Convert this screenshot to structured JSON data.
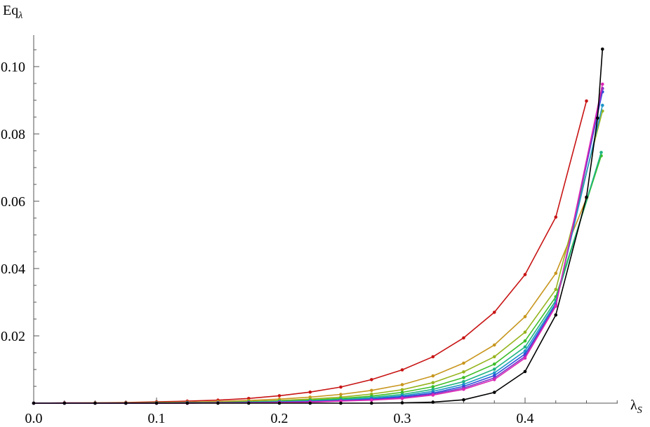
{
  "chart_data": {
    "type": "line",
    "title": "",
    "xlabel": "λ",
    "xlabel_sub": "S",
    "ylabel": "Eq",
    "ylabel_sub": "λ",
    "xlim": [
      0,
      0.475
    ],
    "ylim": [
      0,
      0.108
    ],
    "grid": false,
    "markers": true,
    "x_ticks": [
      {
        "value": 0.0,
        "label": "0.0"
      },
      {
        "value": 0.1,
        "label": "0.1"
      },
      {
        "value": 0.2,
        "label": "0.2"
      },
      {
        "value": 0.3,
        "label": "0.3"
      },
      {
        "value": 0.4,
        "label": "0.4"
      }
    ],
    "y_ticks": [
      {
        "value": 0.02,
        "label": "0.02"
      },
      {
        "value": 0.04,
        "label": "0.04"
      },
      {
        "value": 0.06,
        "label": "0.06"
      },
      {
        "value": 0.08,
        "label": "0.08"
      },
      {
        "value": 0.1,
        "label": "0.10"
      }
    ],
    "x": [
      0.0,
      0.025,
      0.05,
      0.075,
      0.1,
      0.125,
      0.15,
      0.175,
      0.2,
      0.225,
      0.25,
      0.275,
      0.3,
      0.325,
      0.35,
      0.375,
      0.4,
      0.425
    ],
    "series": [
      {
        "color": "#c81414",
        "values": [
          0,
          0.0001,
          0.0001,
          0.0002,
          0.0004,
          0.0006,
          0.0009,
          0.0014,
          0.0022,
          0.0033,
          0.0048,
          0.007,
          0.0099,
          0.0138,
          0.0194,
          0.027,
          0.0382,
          0.0553
        ],
        "end": [
          0.45,
          0.0898
        ]
      },
      {
        "color": "#c8961e",
        "values": [
          0,
          0.0,
          0.0001,
          0.0001,
          0.0002,
          0.0003,
          0.0005,
          0.0008,
          0.0012,
          0.0018,
          0.0026,
          0.0038,
          0.0055,
          0.0081,
          0.0119,
          0.0173,
          0.0257,
          0.0386
        ],
        "end": [
          0.45,
          0.0608
        ]
      },
      {
        "color": "#96b41e",
        "values": [
          0,
          0.0,
          0.0,
          0.0001,
          0.0001,
          0.0002,
          0.0003,
          0.0005,
          0.0008,
          0.0012,
          0.0018,
          0.0027,
          0.004,
          0.0061,
          0.0093,
          0.0138,
          0.0211,
          0.0338
        ],
        "end": [
          0.463,
          0.0868
        ]
      },
      {
        "color": "#3cbe28",
        "values": [
          0,
          0.0,
          0.0,
          0.0,
          0.0001,
          0.0001,
          0.0002,
          0.0004,
          0.0006,
          0.0009,
          0.0014,
          0.0021,
          0.0032,
          0.0049,
          0.0076,
          0.0116,
          0.0185,
          0.0316
        ],
        "end": [
          0.462,
          0.0735
        ]
      },
      {
        "color": "#1eb482",
        "values": [
          0,
          0.0,
          0.0,
          0.0,
          0.0001,
          0.0001,
          0.0002,
          0.0003,
          0.0005,
          0.0007,
          0.0011,
          0.0017,
          0.0026,
          0.0041,
          0.0064,
          0.0101,
          0.0167,
          0.0305
        ],
        "end": [
          0.462,
          0.0745
        ]
      },
      {
        "color": "#1e96c8",
        "values": [
          0,
          0.0,
          0.0,
          0.0,
          0.0,
          0.0001,
          0.0001,
          0.0002,
          0.0004,
          0.0006,
          0.0009,
          0.0014,
          0.0022,
          0.0035,
          0.0056,
          0.009,
          0.0155,
          0.0298
        ],
        "end": [
          0.463,
          0.0885
        ]
      },
      {
        "color": "#2850dc",
        "values": [
          0,
          0.0,
          0.0,
          0.0,
          0.0,
          0.0001,
          0.0001,
          0.0002,
          0.0003,
          0.0005,
          0.0008,
          0.0012,
          0.0019,
          0.003,
          0.005,
          0.0082,
          0.0146,
          0.0293
        ],
        "end": [
          0.463,
          0.0925
        ]
      },
      {
        "color": "#8232c8",
        "values": [
          0,
          0.0,
          0.0,
          0.0,
          0.0,
          0.0,
          0.0001,
          0.0001,
          0.0002,
          0.0004,
          0.0007,
          0.001,
          0.0016,
          0.0027,
          0.0045,
          0.0075,
          0.0139,
          0.029
        ],
        "end": [
          0.463,
          0.0935
        ]
      },
      {
        "color": "#dc28b4",
        "values": [
          0,
          0.0,
          0.0,
          0.0,
          0.0,
          0.0,
          0.0001,
          0.0001,
          0.0002,
          0.0003,
          0.0006,
          0.0009,
          0.0014,
          0.0024,
          0.0041,
          0.007,
          0.0134,
          0.0288
        ],
        "end": [
          0.463,
          0.0948
        ]
      },
      {
        "color": "#000000",
        "values": [
          0,
          0.0,
          0.0,
          0.0,
          0.0,
          0.0,
          0.0,
          0.0,
          0.0,
          0.0,
          0.0,
          0.0,
          0.0001,
          0.0003,
          0.001,
          0.0032,
          0.0094,
          0.0262
        ],
        "end": [
          0.463,
          0.1052
        ],
        "extra": [
          [
            0.45,
            0.0612
          ],
          [
            0.459,
            0.0847
          ]
        ]
      }
    ]
  }
}
